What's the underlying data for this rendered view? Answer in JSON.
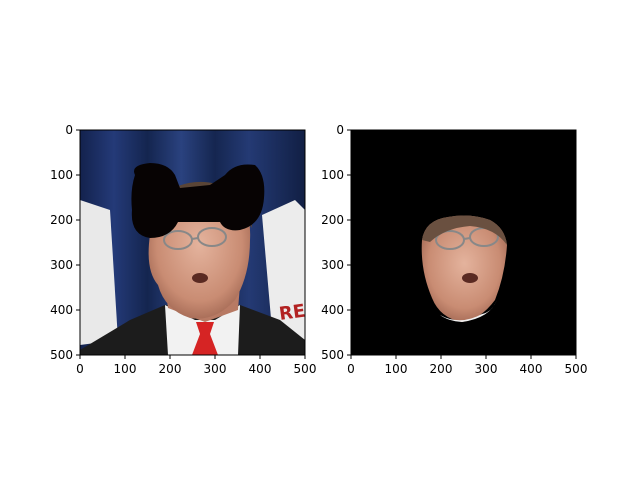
{
  "figure": {
    "panels": [
      {
        "name": "original-image",
        "xlim": [
          0,
          500
        ],
        "ylim": [
          500,
          0
        ],
        "xticks": [
          "0",
          "100",
          "200",
          "300",
          "400",
          "500"
        ],
        "yticks": [
          "0",
          "100",
          "200",
          "300",
          "400",
          "500"
        ],
        "content": "photo of a man in a suit with red tie, glasses, blue curtain background; black occlusion shape over forehead/hair"
      },
      {
        "name": "masked-face-image",
        "xlim": [
          0,
          500
        ],
        "ylim": [
          500,
          0
        ],
        "xticks": [
          "0",
          "100",
          "200",
          "300",
          "400",
          "500"
        ],
        "yticks": [
          "0",
          "100",
          "200",
          "300",
          "400",
          "500"
        ],
        "content": "same photo masked to face region only, black background"
      }
    ]
  },
  "colors": {
    "background": "#ffffff",
    "curtain": "#1b2d63",
    "suit": "#1a1a1a",
    "tie": "#d62424",
    "skin": "#d8a08a",
    "mask": "#000000"
  }
}
